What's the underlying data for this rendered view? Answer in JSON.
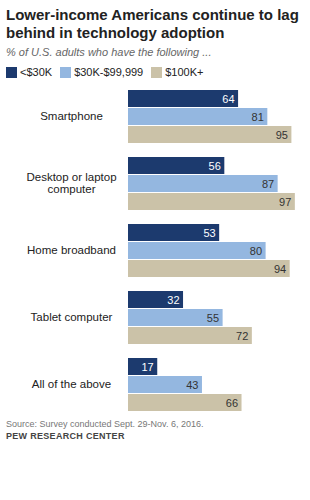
{
  "chart_data": {
    "type": "bar",
    "orientation": "horizontal",
    "title": "Lower-income Americans continue to lag behind in technology adoption",
    "subtitle": "% of U.S. adults who have the following ...",
    "categories": [
      "Smartphone",
      "Desktop or laptop computer",
      "Home broadband",
      "Tablet computer",
      "All of the above"
    ],
    "series": [
      {
        "name": "<$30K",
        "color": "#1c3a6e",
        "values": [
          64,
          56,
          53,
          32,
          17
        ]
      },
      {
        "name": "$30K-$99,999",
        "color": "#94b7e0",
        "values": [
          81,
          87,
          80,
          55,
          43
        ]
      },
      {
        "name": "$100K+",
        "color": "#cbc2a8",
        "values": [
          95,
          97,
          94,
          72,
          66
        ]
      }
    ],
    "xlim": [
      0,
      100
    ],
    "data_labels": true,
    "tick_labels": "y",
    "grid": false,
    "legend": "top",
    "source": "Source: Survey conducted Sept. 29-Nov. 6, 2016.",
    "credit": "PEW RESEARCH CENTER"
  }
}
